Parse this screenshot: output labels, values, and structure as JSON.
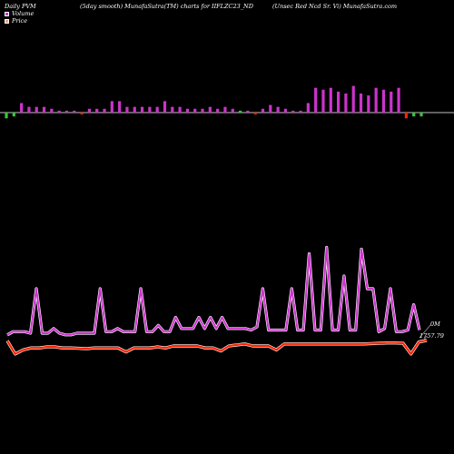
{
  "header": {
    "left": "Daily PVM",
    "center": "(5day smooth) MunafaSutra(TM) charts for IIFLZC23_ND",
    "right": "(Unsec Red Ncd Sr. Vi) MunafaSutra.com"
  },
  "legend": [
    {
      "label": "Volume",
      "color": "#ffffff"
    },
    {
      "label": "Price",
      "color": "#ffa07a"
    }
  ],
  "chart_data": [
    {
      "type": "bar",
      "description": "volume bars around a baseline",
      "colors": {
        "up": "#cc33cc",
        "down_green": "#33cc33",
        "down_red": "#ff2200"
      },
      "values": [
        -3,
        -2,
        5,
        3,
        3,
        3,
        2,
        1,
        1,
        1,
        -1,
        2,
        2,
        2,
        6,
        6,
        3,
        3,
        3,
        3,
        3,
        6,
        3,
        3,
        2,
        2,
        2,
        3,
        2,
        3,
        2,
        1,
        1,
        -1,
        2,
        4,
        3,
        2,
        1,
        1,
        5,
        13,
        12,
        13,
        11,
        10,
        14,
        10,
        9,
        13,
        12,
        11,
        13,
        -3,
        -2,
        -2
      ],
      "signs": [
        "g",
        "g",
        "m",
        "m",
        "m",
        "m",
        "m",
        "m",
        "m",
        "m",
        "r",
        "m",
        "m",
        "m",
        "m",
        "m",
        "m",
        "m",
        "m",
        "m",
        "m",
        "m",
        "m",
        "m",
        "m",
        "m",
        "m",
        "m",
        "m",
        "m",
        "m",
        "g",
        "m",
        "r",
        "m",
        "m",
        "m",
        "m",
        "m",
        "m",
        "m",
        "m",
        "m",
        "m",
        "m",
        "m",
        "m",
        "m",
        "m",
        "m",
        "m",
        "m",
        "m",
        "r",
        "g",
        "g"
      ]
    },
    {
      "type": "line",
      "series": [
        {
          "name": "Volume",
          "color": "#cc33cc",
          "values": [
            11,
            13,
            13,
            13,
            12,
            40,
            12,
            12,
            15,
            12,
            11,
            11,
            12,
            12,
            12,
            12,
            40,
            13,
            13,
            15,
            13,
            13,
            13,
            40,
            13,
            13,
            17,
            13,
            13,
            22,
            15,
            15,
            15,
            22,
            15,
            22,
            15,
            22,
            15,
            15,
            15,
            15,
            14,
            16,
            40,
            14,
            14,
            14,
            14,
            40,
            14,
            14,
            62,
            14,
            14,
            66,
            14,
            14,
            48,
            14,
            14,
            65,
            40,
            40,
            13,
            15,
            40,
            13,
            13,
            14,
            30,
            14
          ]
        },
        {
          "name": "Price",
          "color": "#ff2200",
          "values": [
            1757.6,
            1751.0,
            1753.0,
            1754.0,
            1754.0,
            1754.5,
            1754.5,
            1754.0,
            1754.0,
            1753.8,
            1753.6,
            1754.0,
            1754.0,
            1754.0,
            1754.0,
            1752.0,
            1754.0,
            1754.0,
            1754.0,
            1754.5,
            1754.0,
            1755.0,
            1755.0,
            1755.0,
            1755.0,
            1754.0,
            1754.0,
            1752.5,
            1755.0,
            1755.5,
            1756.0,
            1755.0,
            1755.0,
            1755.0,
            1753.0,
            1756.0,
            1756.0,
            1756.0,
            1756.0,
            1756.0,
            1756.0,
            1756.0,
            1756.0,
            1756.0,
            1756.0,
            1756.0,
            1756.2,
            1756.3,
            1756.5,
            1756.5,
            1756.4,
            1751.0,
            1757.0,
            1757.79
          ]
        }
      ],
      "annotations": {
        "volume_last": "0M",
        "price_last": "1757.79"
      }
    }
  ]
}
